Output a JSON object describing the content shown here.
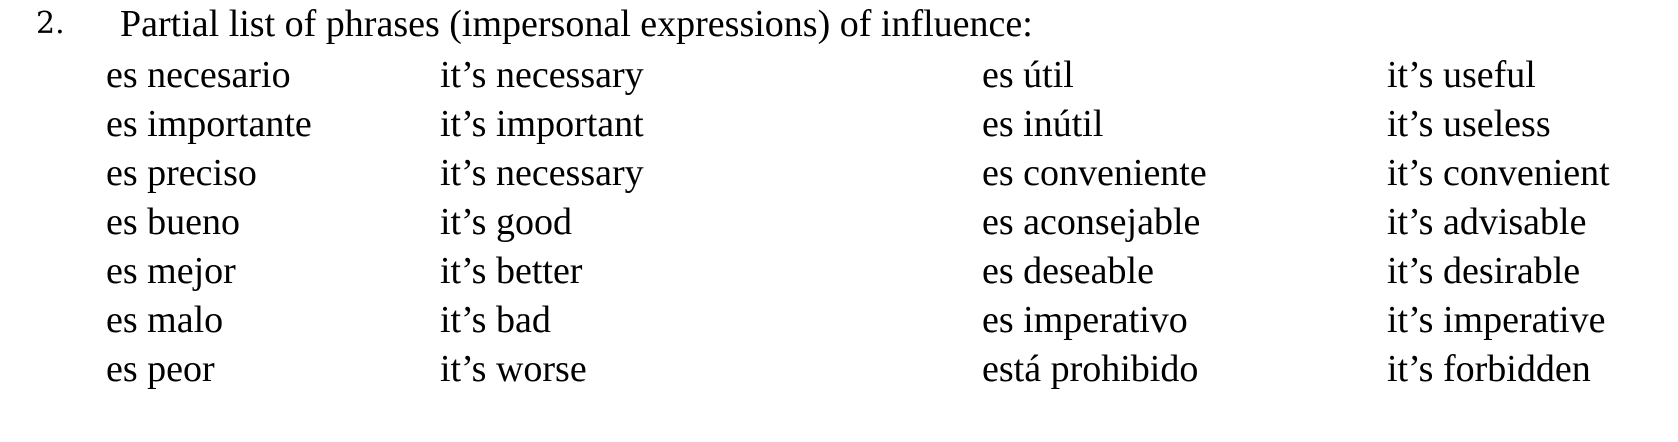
{
  "heading": {
    "number": "2.",
    "title": "Partial list of phrases (impersonal expressions) of influence:"
  },
  "rows": [
    {
      "es1": "es necesario",
      "en1": "it’s necessary",
      "es2": "es útil",
      "en2": "it’s useful"
    },
    {
      "es1": "es importante",
      "en1": "it’s important",
      "es2": "es inútil",
      "en2": "it’s useless"
    },
    {
      "es1": "es preciso",
      "en1": "it’s necessary",
      "es2": "es conveniente",
      "en2": "it’s convenient"
    },
    {
      "es1": "es bueno",
      "en1": "it’s good",
      "es2": "es aconsejable",
      "en2": "it’s advisable"
    },
    {
      "es1": "es mejor",
      "en1": "it’s better",
      "es2": "es deseable",
      "en2": "it’s desirable"
    },
    {
      "es1": "es malo",
      "en1": "it’s bad",
      "es2": "es imperativo",
      "en2": "it’s imperative"
    },
    {
      "es1": "es peor",
      "en1": "it’s worse",
      "es2": "está prohibido",
      "en2": "it’s forbidden"
    }
  ]
}
